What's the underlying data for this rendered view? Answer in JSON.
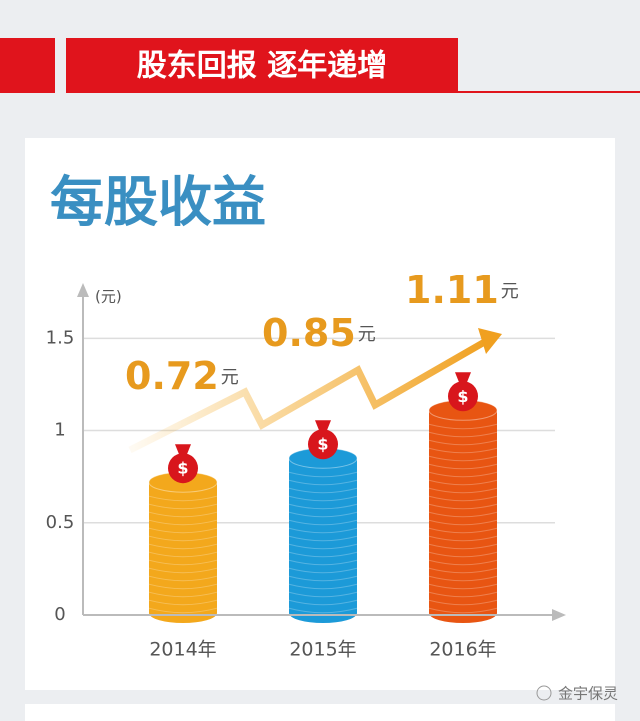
{
  "banner": {
    "title": "股东回报  逐年递增"
  },
  "watermark": "金宇保灵",
  "chart_data": {
    "type": "bar",
    "title": "每股收益",
    "y_unit": "(元)",
    "categories": [
      "2014年",
      "2015年",
      "2016年"
    ],
    "values": [
      0.72,
      0.85,
      1.11
    ],
    "value_units": [
      "元",
      "元",
      "元"
    ],
    "colors": [
      "#f3a81c",
      "#1c9ad8",
      "#e85512"
    ],
    "icon_text": "$",
    "ylim": [
      0,
      1.8
    ],
    "yticks": [
      0,
      0.5,
      1,
      1.5
    ],
    "grid": true
  }
}
